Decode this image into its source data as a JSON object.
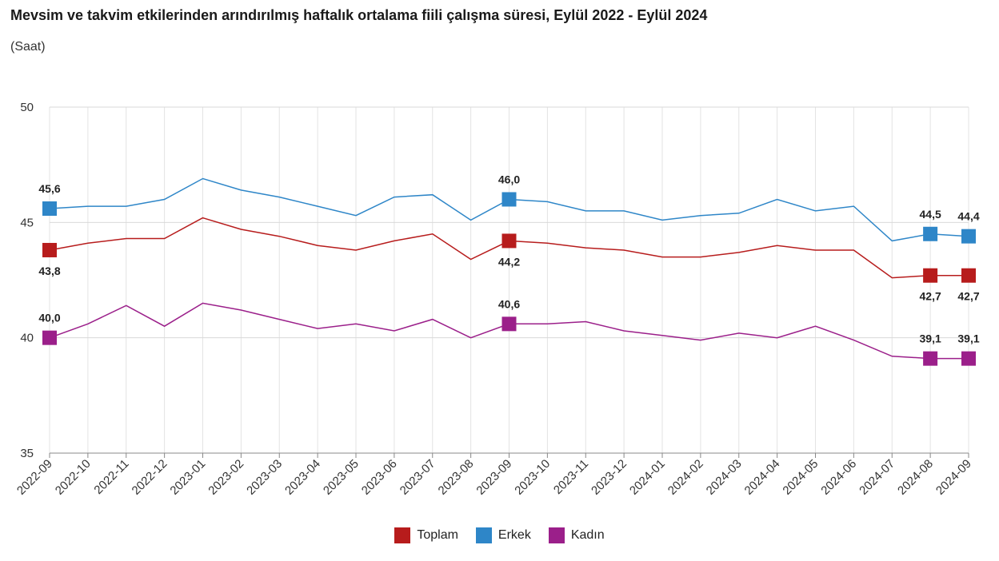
{
  "title": "Mevsim ve takvim etkilerinden arındırılmış haftalık ortalama fiili çalışma süresi, Eylül 2022 - Eylül 2024",
  "subtitle": "(Saat)",
  "chart_data": {
    "type": "line",
    "title": "Mevsim ve takvim etkilerinden arındırılmış haftalık ortalama fiili çalışma süresi, Eylül 2022 - Eylül 2024",
    "subtitle": "(Saat)",
    "xlabel": "",
    "ylabel": "",
    "ylim": [
      35,
      50
    ],
    "yticks": [
      35,
      40,
      45,
      50
    ],
    "grid": true,
    "legend_position": "bottom-center",
    "categories": [
      "2022-09",
      "2022-10",
      "2022-11",
      "2022-12",
      "2023-01",
      "2023-02",
      "2023-03",
      "2023-04",
      "2023-05",
      "2023-06",
      "2023-07",
      "2023-08",
      "2023-09",
      "2023-10",
      "2023-11",
      "2023-12",
      "2024-01",
      "2024-02",
      "2024-03",
      "2024-04",
      "2024-05",
      "2024-06",
      "2024-07",
      "2024-08",
      "2024-09"
    ],
    "series": [
      {
        "name": "Toplam",
        "color": "#b71c1c",
        "values": [
          43.8,
          44.1,
          44.3,
          44.3,
          45.2,
          44.7,
          44.4,
          44.0,
          43.8,
          44.2,
          44.5,
          43.4,
          44.2,
          44.1,
          43.9,
          43.8,
          43.5,
          43.5,
          43.7,
          44.0,
          43.8,
          43.8,
          42.6,
          42.7,
          42.7
        ],
        "markers": [
          {
            "index": 0,
            "label": "43,8",
            "label_pos": "below"
          },
          {
            "index": 12,
            "label": "44,2",
            "label_pos": "below"
          },
          {
            "index": 23,
            "label": "42,7",
            "label_pos": "below"
          },
          {
            "index": 24,
            "label": "42,7",
            "label_pos": "below"
          }
        ]
      },
      {
        "name": "Erkek",
        "color": "#2e86c8",
        "values": [
          45.6,
          45.7,
          45.7,
          46.0,
          46.9,
          46.4,
          46.1,
          45.7,
          45.3,
          46.1,
          46.2,
          45.1,
          46.0,
          45.9,
          45.5,
          45.5,
          45.1,
          45.3,
          45.4,
          46.0,
          45.5,
          45.7,
          44.2,
          44.5,
          44.4
        ],
        "markers": [
          {
            "index": 0,
            "label": "45,6",
            "label_pos": "above"
          },
          {
            "index": 12,
            "label": "46,0",
            "label_pos": "above"
          },
          {
            "index": 23,
            "label": "44,5",
            "label_pos": "above"
          },
          {
            "index": 24,
            "label": "44,4",
            "label_pos": "above"
          }
        ]
      },
      {
        "name": "Kadın",
        "color": "#9b1f8a",
        "values": [
          40.0,
          40.6,
          41.4,
          40.5,
          41.5,
          41.2,
          40.8,
          40.4,
          40.6,
          40.3,
          40.8,
          40.0,
          40.6,
          40.6,
          40.7,
          40.3,
          40.1,
          39.9,
          40.2,
          40.0,
          40.5,
          39.9,
          39.2,
          39.1,
          39.1
        ],
        "markers": [
          {
            "index": 0,
            "label": "40,0",
            "label_pos": "above"
          },
          {
            "index": 12,
            "label": "40,6",
            "label_pos": "above"
          },
          {
            "index": 23,
            "label": "39,1",
            "label_pos": "above"
          },
          {
            "index": 24,
            "label": "39,1",
            "label_pos": "above"
          }
        ]
      }
    ]
  }
}
